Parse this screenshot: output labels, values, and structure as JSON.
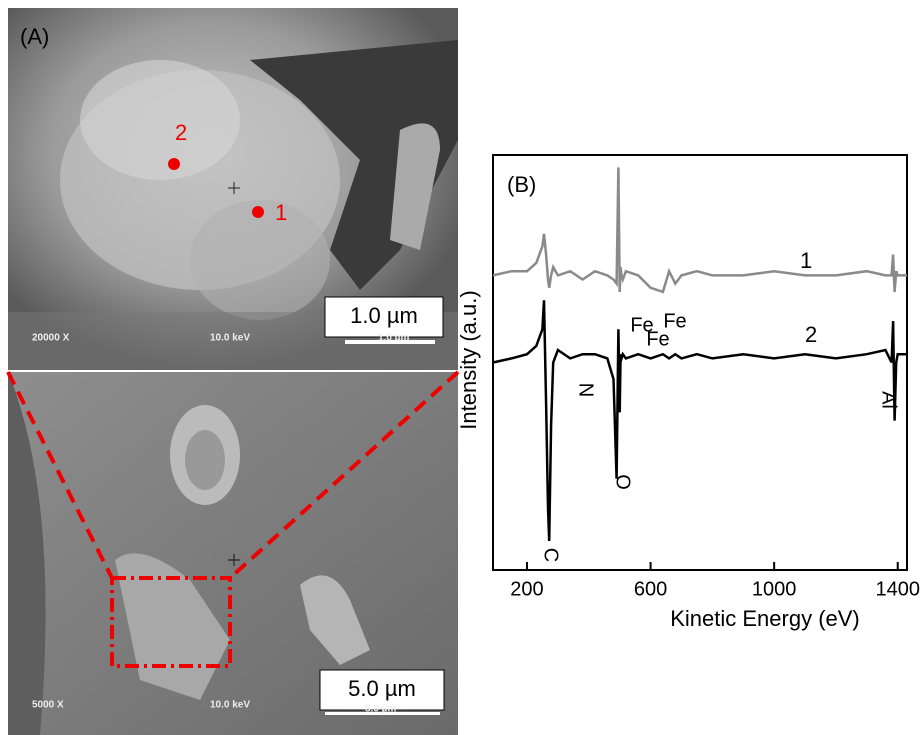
{
  "panel_a": {
    "label": "(A)",
    "top_image": {
      "point_2": "2",
      "point_1": "1",
      "scale_bar": "1.0 µm",
      "scale_bar_small": "1.0 µm",
      "magnification": "20000 X",
      "voltage": "10.0 keV"
    },
    "bottom_image": {
      "scale_bar": "5.0 µm",
      "scale_bar_small": "5.0 µm",
      "magnification": "5000 X",
      "voltage": "10.0 keV"
    }
  },
  "chart_data": {
    "type": "line",
    "panel_label": "(B)",
    "x_label": "Kinetic Energy (eV)",
    "y_label": "Intensity (a.u.)",
    "xlim": [
      90,
      1430
    ],
    "xticks": [
      200,
      600,
      1000,
      1400
    ],
    "ylim": [
      0,
      10
    ],
    "x": [
      90,
      150,
      200,
      230,
      250,
      255,
      262,
      268,
      272,
      278,
      285,
      300,
      340,
      380,
      420,
      460,
      480,
      490,
      496,
      500,
      503,
      506,
      510,
      520,
      560,
      600,
      640,
      660,
      680,
      700,
      750,
      800,
      900,
      1000,
      1100,
      1200,
      1300,
      1360,
      1380,
      1385,
      1390,
      1395,
      1400,
      1430
    ],
    "series": [
      {
        "name": "1",
        "color": "#8a8a8a",
        "values": [
          7.1,
          7.2,
          7.2,
          7.4,
          7.8,
          8.1,
          7.6,
          7.0,
          6.8,
          7.1,
          7.3,
          7.1,
          7.2,
          7.0,
          7.2,
          7.1,
          7.0,
          6.9,
          9.7,
          6.7,
          7.3,
          7.1,
          7.0,
          7.2,
          7.1,
          6.8,
          6.7,
          7.2,
          6.9,
          7.1,
          7.2,
          7.1,
          7.1,
          7.2,
          7.1,
          7.1,
          7.2,
          7.1,
          7.1,
          7.6,
          6.7,
          7.2,
          7.1,
          7.1
        ]
      },
      {
        "name": "2",
        "color": "#000000",
        "values": [
          5.0,
          5.1,
          5.2,
          5.4,
          5.8,
          6.5,
          4.0,
          1.5,
          0.7,
          3.5,
          5.0,
          5.3,
          5.1,
          5.2,
          5.2,
          5.1,
          4.6,
          2.2,
          5.8,
          3.8,
          5.2,
          5.1,
          5.2,
          5.1,
          5.2,
          5.1,
          5.2,
          5.1,
          5.2,
          5.1,
          5.2,
          5.1,
          5.2,
          5.1,
          5.2,
          5.1,
          5.2,
          5.3,
          5.0,
          6.0,
          3.6,
          5.0,
          5.2,
          5.2
        ]
      }
    ],
    "annotations": [
      "N",
      "O",
      "C",
      "Fe",
      "Fe",
      "Fe",
      "Al"
    ]
  }
}
